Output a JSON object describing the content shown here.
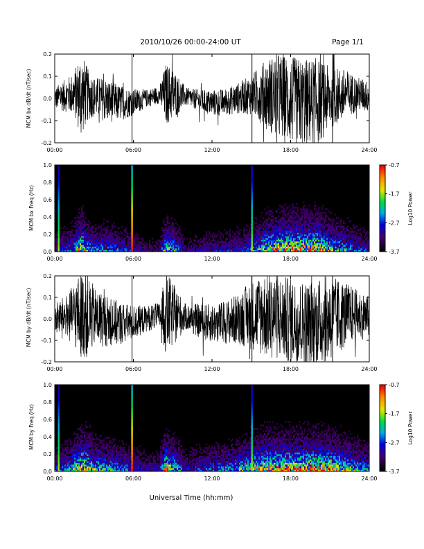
{
  "header": {
    "date_range": "2010/10/26  00:00-24:00 UT",
    "page": "Page 1/1"
  },
  "x_axis": {
    "title": "Universal Time (hh:mm)",
    "ticks": [
      "00:00",
      "06:00",
      "12:00",
      "18:00",
      "24:00"
    ]
  },
  "colors": {
    "background": "#ffffff",
    "ink": "#000000",
    "spectrogram_background": "#000000"
  },
  "colorbar": {
    "label": "Log10 Power",
    "ticks": [
      "-0.7",
      "-1.7",
      "-2.7",
      "-3.7"
    ],
    "range": [
      -3.7,
      -0.7
    ],
    "colormap": "rainbow: black-purple-blue-cyan-green-yellow-orange-red"
  },
  "panels": [
    {
      "id": "bx-waveform",
      "type": "line",
      "ylabel": "MCM bx dB/dt (nT/sec)",
      "yticks": [
        "0.2",
        "0.1",
        "0.0",
        "-0.1",
        "-0.2"
      ]
    },
    {
      "id": "bx-spectrogram",
      "type": "heatmap",
      "ylabel": "MCM bx Freq (Hz)",
      "yticks": [
        "1.0",
        "0.8",
        "0.6",
        "0.4",
        "0.2",
        "0.0"
      ]
    },
    {
      "id": "by-waveform",
      "type": "line",
      "ylabel": "MCM by dB/dt (nT/sec)",
      "yticks": [
        "0.2",
        "0.1",
        "0.0",
        "-0.1",
        "-0.2"
      ]
    },
    {
      "id": "by-spectrogram",
      "type": "heatmap",
      "ylabel": "MCM by Freq (Hz)",
      "yticks": [
        "1.0",
        "0.8",
        "0.6",
        "0.4",
        "0.2",
        "0.0"
      ]
    }
  ],
  "chart_data": [
    {
      "type": "line",
      "title": "",
      "xlabel": "",
      "ylabel": "MCM bx dB/dt (nT/sec)",
      "xlim": [
        0,
        24
      ],
      "ylim": [
        -0.2,
        0.2
      ],
      "x_units": "hours UT",
      "amplitude_envelope": {
        "x": [
          0,
          1,
          1.5,
          2,
          2.5,
          3,
          4,
          5,
          6,
          7,
          8,
          8.5,
          9,
          10,
          11,
          12,
          13,
          14,
          15,
          16,
          17,
          18,
          19,
          20,
          21,
          22,
          23,
          24
        ],
        "y": [
          0.05,
          0.08,
          0.1,
          0.2,
          0.12,
          0.09,
          0.1,
          0.08,
          0.06,
          0.04,
          0.04,
          0.14,
          0.12,
          0.04,
          0.05,
          0.06,
          0.06,
          0.07,
          0.09,
          0.15,
          0.2,
          0.2,
          0.2,
          0.2,
          0.14,
          0.12,
          0.08,
          0.07
        ]
      },
      "spikes_at": [
        5.9,
        15.05,
        21.2
      ]
    },
    {
      "type": "heatmap",
      "title": "",
      "xlabel": "",
      "ylabel": "MCM bx Freq (Hz)",
      "xlim": [
        0,
        24
      ],
      "ylim": [
        0,
        1.0
      ],
      "color_range": [
        -3.7,
        -0.7
      ],
      "activity_envelope": {
        "x": [
          0,
          1,
          1.5,
          2,
          2.5,
          3,
          4,
          5,
          6,
          7,
          8,
          8.5,
          9,
          10,
          11,
          12,
          13,
          14,
          15,
          16,
          17,
          18,
          19,
          20,
          21,
          22,
          23,
          24
        ],
        "y": [
          0.05,
          0.08,
          0.1,
          0.2,
          0.12,
          0.09,
          0.1,
          0.08,
          0.06,
          0.04,
          0.04,
          0.14,
          0.12,
          0.04,
          0.05,
          0.06,
          0.06,
          0.07,
          0.09,
          0.15,
          0.2,
          0.2,
          0.2,
          0.2,
          0.14,
          0.12,
          0.08,
          0.07
        ]
      },
      "broadband_lines_at": [
        0.3,
        5.9,
        15.05
      ]
    },
    {
      "type": "line",
      "title": "",
      "xlabel": "",
      "ylabel": "MCM by dB/dt (nT/sec)",
      "xlim": [
        0,
        24
      ],
      "ylim": [
        -0.2,
        0.2
      ],
      "x_units": "hours UT",
      "amplitude_envelope": {
        "x": [
          0,
          1,
          1.5,
          2,
          2.5,
          3,
          4,
          5,
          6,
          7,
          8,
          8.5,
          9,
          10,
          11,
          12,
          13,
          14,
          15,
          16,
          17,
          18,
          19,
          20,
          21,
          22,
          23,
          24
        ],
        "y": [
          0.07,
          0.1,
          0.15,
          0.2,
          0.2,
          0.14,
          0.12,
          0.1,
          0.08,
          0.06,
          0.06,
          0.2,
          0.15,
          0.06,
          0.08,
          0.09,
          0.1,
          0.12,
          0.16,
          0.2,
          0.2,
          0.2,
          0.2,
          0.2,
          0.2,
          0.16,
          0.12,
          0.1
        ]
      },
      "spikes_at": [
        5.9,
        15.05,
        21.2
      ]
    },
    {
      "type": "heatmap",
      "title": "",
      "xlabel": "",
      "ylabel": "MCM by Freq (Hz)",
      "xlim": [
        0,
        24
      ],
      "ylim": [
        0,
        1.0
      ],
      "color_range": [
        -3.7,
        -0.7
      ],
      "activity_envelope": {
        "x": [
          0,
          1,
          1.5,
          2,
          2.5,
          3,
          4,
          5,
          6,
          7,
          8,
          8.5,
          9,
          10,
          11,
          12,
          13,
          14,
          15,
          16,
          17,
          18,
          19,
          20,
          21,
          22,
          23,
          24
        ],
        "y": [
          0.07,
          0.1,
          0.15,
          0.2,
          0.2,
          0.14,
          0.12,
          0.1,
          0.08,
          0.06,
          0.06,
          0.2,
          0.15,
          0.06,
          0.08,
          0.09,
          0.1,
          0.12,
          0.16,
          0.2,
          0.2,
          0.2,
          0.2,
          0.2,
          0.2,
          0.16,
          0.12,
          0.1
        ]
      },
      "broadband_lines_at": [
        0.3,
        5.9,
        15.05
      ]
    }
  ]
}
